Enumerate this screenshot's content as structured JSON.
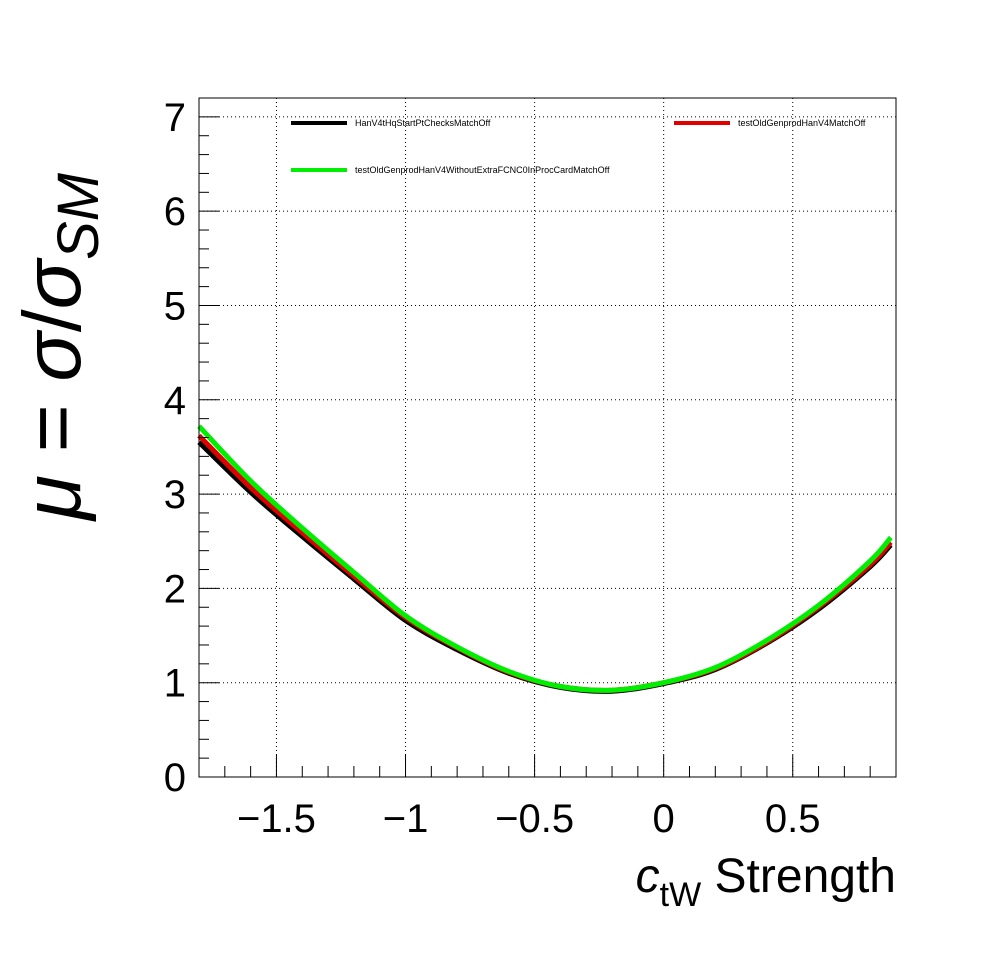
{
  "chart_data": {
    "type": "line",
    "title": "",
    "xlabel": {
      "main": "c",
      "sub": "tW",
      "rest": " Strength"
    },
    "ylabel": {
      "mu": "μ",
      "eq": " = ",
      "sigma": "σ",
      "slash": "/",
      "sigma2": "σ",
      "sub": "SM"
    },
    "xlim": [
      -1.8,
      0.9
    ],
    "ylim": [
      0,
      7.2
    ],
    "x_ticks": [
      -1.5,
      -1,
      -0.5,
      0,
      0.5
    ],
    "x_tick_labels": [
      "−1.5",
      "−1",
      "−0.5",
      "0",
      "0.5"
    ],
    "y_ticks": [
      0,
      1,
      2,
      3,
      4,
      5,
      6,
      7
    ],
    "y_tick_labels": [
      "0",
      "1",
      "2",
      "3",
      "4",
      "5",
      "6",
      "7"
    ],
    "grid": true,
    "legend_position": "top",
    "series": [
      {
        "name": "HanV4tHqStartPtChecksMatchOff",
        "color": "#000000",
        "x": [
          -1.8,
          -1.6,
          -1.4,
          -1.2,
          -1.0,
          -0.8,
          -0.6,
          -0.4,
          -0.2,
          0.0,
          0.2,
          0.4,
          0.6,
          0.8,
          0.88
        ],
        "y": [
          3.55,
          3.02,
          2.55,
          2.1,
          1.66,
          1.35,
          1.1,
          0.95,
          0.91,
          0.99,
          1.14,
          1.42,
          1.78,
          2.23,
          2.46
        ]
      },
      {
        "name": "testOldGenprodHanV4MatchOff",
        "color": "#e00000",
        "x": [
          -1.8,
          -1.6,
          -1.4,
          -1.2,
          -1.0,
          -0.8,
          -0.6,
          -0.4,
          -0.2,
          0.0,
          0.2,
          0.4,
          0.6,
          0.8,
          0.88
        ],
        "y": [
          3.62,
          3.07,
          2.59,
          2.13,
          1.69,
          1.37,
          1.11,
          0.96,
          0.92,
          1.0,
          1.15,
          1.43,
          1.8,
          2.25,
          2.49
        ]
      },
      {
        "name": "testOldGenprodHanV4WithoutExtraFCNC0InProcCardMatchOff",
        "color": "#00ee00",
        "x": [
          -1.8,
          -1.6,
          -1.4,
          -1.2,
          -1.0,
          -0.8,
          -0.6,
          -0.4,
          -0.2,
          0.0,
          0.2,
          0.4,
          0.6,
          0.8,
          0.88
        ],
        "y": [
          3.72,
          3.14,
          2.64,
          2.17,
          1.71,
          1.38,
          1.12,
          0.96,
          0.92,
          1.0,
          1.16,
          1.45,
          1.82,
          2.29,
          2.54
        ]
      }
    ]
  }
}
